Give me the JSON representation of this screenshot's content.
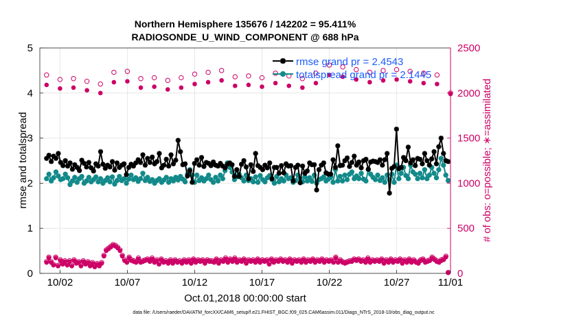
{
  "colors": {
    "rmse": "#000000",
    "totalspread": "#138a8a",
    "obs": "#cc0066",
    "legend_text": "#1a5cff",
    "grid": "#e6e6e6"
  },
  "footer": "data file: /Users/raeder/DAI/ATM_forcXX/CAM6_setup/f.e21.FHIST_BGC.f09_025.CAM6assim.011/Diags_NTrS_2018-10/obs_diag_output.nc",
  "chart_data": {
    "type": "line",
    "title_line1": "Northern Hemisphere 135676 / 142202 = 95.411%",
    "title_line2": "RADIOSONDE_U_WIND_COMPONENT @ 688 hPa",
    "xlabel": "Oct.01,2018 00:00:00 start",
    "ylabel_left": "rmse and totalspread",
    "ylabel_right": "# of obs: o=possible; ∗=assimilated",
    "xlim": [
      0.5,
      31.0
    ],
    "ylim_left": [
      0,
      5
    ],
    "ylim_right": [
      0,
      2500
    ],
    "x_ticks": [
      2,
      7,
      12,
      17,
      22,
      27,
      31
    ],
    "x_tick_labels": [
      "10/02",
      "10/07",
      "10/12",
      "10/17",
      "10/22",
      "10/27",
      "11/01"
    ],
    "y_ticks_left": [
      0,
      1,
      2,
      3,
      4,
      5
    ],
    "y_ticks_right": [
      0,
      500,
      1000,
      1500,
      2000,
      2500
    ],
    "legend": [
      {
        "name": "rmse",
        "label": "rmse grand pr = 2.4543"
      },
      {
        "name": "totalspread",
        "label": "totalspread grand pr = 2.1445"
      }
    ],
    "series": [
      {
        "name": "rmse",
        "axis": "left",
        "marker": "star",
        "values": [
          2.55,
          2.62,
          2.48,
          2.6,
          2.55,
          2.66,
          2.46,
          2.39,
          2.5,
          2.38,
          2.45,
          2.31,
          2.41,
          2.35,
          2.28,
          2.51,
          2.44,
          2.36,
          2.46,
          2.34,
          2.27,
          2.43,
          2.38,
          2.7,
          2.42,
          2.33,
          2.4,
          2.36,
          2.48,
          2.29,
          2.45,
          2.35,
          2.4,
          2.43,
          2.19,
          2.35,
          2.42,
          2.38,
          2.45,
          2.52,
          2.46,
          2.63,
          2.4,
          2.55,
          2.46,
          2.58,
          2.43,
          2.48,
          2.66,
          2.34,
          2.4,
          2.53,
          2.38,
          2.63,
          2.43,
          2.51,
          2.95,
          2.7,
          2.41,
          2.43,
          2.16,
          2.28,
          2.02,
          2.44,
          2.52,
          2.4,
          2.57,
          2.37,
          2.46,
          2.44,
          2.39,
          2.47,
          2.4,
          2.38,
          2.44,
          2.38,
          2.34,
          2.42,
          2.45,
          2.41,
          2.15,
          2.3,
          2.15,
          2.42,
          2.5,
          2.36,
          2.1,
          2.41,
          2.26,
          2.66,
          2.39,
          2.35,
          2.3,
          2.4,
          2.34,
          2.45,
          2.1,
          2.35,
          2.35,
          2.22,
          2.39,
          2.23,
          2.43,
          2.38,
          2.39,
          2.05,
          2.35,
          2.4,
          2.01,
          2.38,
          2.22,
          2.27,
          2.45,
          2.41,
          2.41,
          1.85,
          2.3,
          2.4,
          2.45,
          2.23,
          2.2,
          2.2,
          2.52,
          2.35,
          2.83,
          2.39,
          2.4,
          2.5,
          2.56,
          2.37,
          2.46,
          2.6,
          2.4,
          2.47,
          2.34,
          2.5,
          2.53,
          2.31,
          2.47,
          2.49,
          2.48,
          2.46,
          2.52,
          2.4,
          2.52,
          2.66,
          1.78,
          2.33,
          2.37,
          3.2,
          2.32,
          2.35,
          2.57,
          2.5,
          2.8,
          2.45,
          2.52,
          2.39,
          2.55,
          2.53,
          2.43,
          2.66,
          2.5,
          2.4,
          2.54,
          2.7,
          2.43,
          2.81,
          3.0,
          2.66,
          2.5,
          2.48
        ]
      },
      {
        "name": "totalspread",
        "axis": "left",
        "marker": "circle-filled",
        "values": [
          2.1,
          2.2,
          2.05,
          2.12,
          2.25,
          2.16,
          2.08,
          2.1,
          2.2,
          2.12,
          1.97,
          2.05,
          2.13,
          2.02,
          2.1,
          2.15,
          2.0,
          2.05,
          2.13,
          2.03,
          2.08,
          2.14,
          2.03,
          2.1,
          2.0,
          2.06,
          2.12,
          2.03,
          2.14,
          1.98,
          2.06,
          2.15,
          2.06,
          2.1,
          2.0,
          2.09,
          2.18,
          2.08,
          2.12,
          2.04,
          2.1,
          2.22,
          2.06,
          2.13,
          2.04,
          2.08,
          2.0,
          2.06,
          2.1,
          2.02,
          2.07,
          2.13,
          2.02,
          2.1,
          2.05,
          2.13,
          2.07,
          2.15,
          2.09,
          2.03,
          2.2,
          2.3,
          2.18,
          2.02,
          2.18,
          2.06,
          2.12,
          2.05,
          2.1,
          2.18,
          2.08,
          2.02,
          2.13,
          2.05,
          2.18,
          2.1,
          2.28,
          2.45,
          2.35,
          2.25,
          2.08,
          2.14,
          2.2,
          2.12,
          2.05,
          2.18,
          2.06,
          2.1,
          2.03,
          2.14,
          2.02,
          2.17,
          2.08,
          2.03,
          2.12,
          2.17,
          2.08,
          2.0,
          2.15,
          2.03,
          2.1,
          2.05,
          2.18,
          2.1,
          2.12,
          2.02,
          2.06,
          2.18,
          2.1,
          2.03,
          2.14,
          2.05,
          2.12,
          2.04,
          2.18,
          2.0,
          2.08,
          2.1,
          2.14,
          2.05,
          2.09,
          2.14,
          2.02,
          2.3,
          2.05,
          2.15,
          2.05,
          2.18,
          2.08,
          2.2,
          2.25,
          2.1,
          2.16,
          2.1,
          2.22,
          2.09,
          2.05,
          2.3,
          2.2,
          2.13,
          2.08,
          2.18,
          2.06,
          2.12,
          2.02,
          2.18,
          2.08,
          2.2,
          2.02,
          2.4,
          2.1,
          2.22,
          2.35,
          2.17,
          2.1,
          2.4,
          2.25,
          2.2,
          2.1,
          2.22,
          2.12,
          2.3,
          2.1,
          2.18,
          2.35,
          2.22,
          2.12,
          2.3,
          2.55,
          2.4,
          2.18,
          2.06
        ]
      },
      {
        "name": "obs_possible_daily",
        "axis": "right",
        "marker": "circle-open",
        "values": [
          2200,
          2150,
          2160,
          2130,
          2100,
          2230,
          2240,
          2160,
          2170,
          2140,
          2170,
          2210,
          2230,
          2250,
          2180,
          2190,
          2170,
          2220,
          2190,
          2160,
          2220,
          2310,
          2290,
          2260,
          2230,
          2250,
          2260,
          2240,
          2220,
          2200,
          2000
        ]
      },
      {
        "name": "obs_assimilated_daily",
        "axis": "right",
        "marker": "star",
        "values": [
          2090,
          2050,
          2060,
          2030,
          2000,
          2120,
          2130,
          2060,
          2070,
          2040,
          2060,
          2100,
          2120,
          2140,
          2080,
          2090,
          2070,
          2110,
          2080,
          2060,
          2110,
          2200,
          2180,
          2150,
          2120,
          2140,
          2150,
          2130,
          2110,
          2100,
          1990
        ]
      },
      {
        "name": "obs_possible_6h",
        "axis": "right",
        "marker": "circle-open",
        "values": [
          130,
          180,
          130,
          100,
          180,
          90,
          150,
          110,
          140,
          100,
          140,
          90,
          150,
          120,
          130,
          90,
          140,
          110,
          130,
          90,
          120,
          80,
          110,
          90,
          120,
          200,
          260,
          280,
          300,
          320,
          310,
          290,
          260,
          200,
          150,
          130,
          180,
          150,
          140,
          130,
          170,
          130,
          140,
          150,
          160,
          140,
          170,
          130,
          150,
          110,
          160,
          130,
          140,
          120,
          150,
          120,
          150,
          130,
          140,
          120,
          150,
          130,
          150,
          120,
          160,
          130,
          150,
          140,
          150,
          120,
          150,
          140,
          140,
          130,
          160,
          120,
          150,
          140,
          170,
          130,
          160,
          140,
          170,
          130,
          150,
          140,
          160,
          120,
          150,
          140,
          150,
          130,
          160,
          130,
          150,
          140,
          150,
          110,
          160,
          130,
          150,
          140,
          160,
          140,
          150,
          130,
          160,
          120,
          150,
          140,
          150,
          130,
          160,
          130,
          150,
          140,
          160,
          130,
          150,
          140,
          160,
          130,
          150,
          140,
          150,
          130,
          180,
          130,
          150,
          130,
          120,
          130,
          140,
          140,
          160,
          150,
          160,
          140,
          150,
          130,
          170,
          130,
          150,
          140,
          150,
          140,
          160,
          120,
          150,
          130,
          160,
          130,
          150,
          140,
          160,
          120,
          150,
          130,
          160,
          130,
          150,
          130,
          120,
          150,
          160,
          130,
          140,
          150,
          180,
          160,
          140,
          130,
          150,
          160,
          190,
          10
        ]
      },
      {
        "name": "obs_assimilated_6h",
        "axis": "right",
        "marker": "star",
        "values": [
          120,
          170,
          120,
          90,
          170,
          80,
          140,
          100,
          130,
          90,
          130,
          80,
          140,
          110,
          120,
          80,
          130,
          100,
          120,
          80,
          110,
          70,
          100,
          80,
          110,
          190,
          250,
          270,
          290,
          310,
          300,
          280,
          250,
          190,
          140,
          120,
          170,
          140,
          130,
          120,
          160,
          120,
          130,
          140,
          150,
          130,
          160,
          120,
          140,
          100,
          150,
          120,
          130,
          110,
          140,
          110,
          140,
          120,
          130,
          110,
          140,
          120,
          140,
          110,
          150,
          120,
          140,
          130,
          140,
          110,
          140,
          130,
          130,
          120,
          150,
          110,
          140,
          130,
          160,
          120,
          150,
          130,
          160,
          120,
          140,
          130,
          150,
          110,
          140,
          130,
          140,
          120,
          150,
          120,
          140,
          130,
          140,
          100,
          150,
          120,
          140,
          130,
          150,
          130,
          140,
          120,
          150,
          110,
          140,
          130,
          140,
          120,
          150,
          120,
          140,
          130,
          150,
          120,
          140,
          130,
          150,
          120,
          140,
          130,
          140,
          120,
          170,
          120,
          140,
          120,
          110,
          120,
          130,
          130,
          150,
          140,
          150,
          130,
          140,
          120,
          160,
          120,
          140,
          130,
          140,
          130,
          150,
          110,
          140,
          120,
          150,
          120,
          140,
          130,
          150,
          110,
          140,
          120,
          150,
          120,
          140,
          120,
          110,
          140,
          150,
          120,
          130,
          140,
          170,
          150,
          130,
          120,
          140,
          150,
          180,
          5
        ]
      }
    ]
  }
}
